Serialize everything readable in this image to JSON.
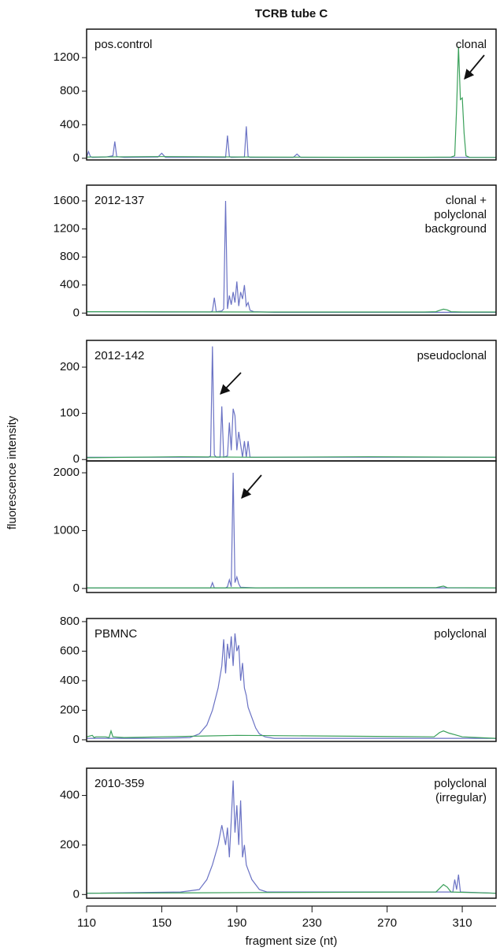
{
  "chart_data": {
    "type": "line",
    "title": "TCRB tube C",
    "xlabel": "fragment size (nt)",
    "ylabel": "fluorescence intensity",
    "xlim": [
      110,
      328
    ],
    "xticks": [
      110,
      150,
      190,
      230,
      270,
      310
    ],
    "panels": [
      {
        "type": "line",
        "label": "pos.control",
        "annotation": [
          "clonal"
        ],
        "ylim": [
          -20,
          1540
        ],
        "yticks": [
          0,
          400,
          800,
          1200
        ],
        "series": [
          {
            "color": "#6a72c4",
            "x": [
              110,
              111,
              112,
              113,
              120,
              124,
              125,
              126,
              130,
              148,
              150,
              152,
              170,
              184,
              185,
              186,
              187,
              194,
              195,
              196,
              197,
              220,
              222,
              224,
              250,
              300,
              328
            ],
            "values": [
              10,
              80,
              20,
              10,
              15,
              30,
              200,
              20,
              10,
              15,
              60,
              10,
              12,
              10,
              270,
              20,
              10,
              15,
              380,
              20,
              10,
              10,
              50,
              10,
              12,
              10,
              10
            ]
          },
          {
            "color": "#3aa05a",
            "x": [
              110,
              150,
              200,
              250,
              290,
              304,
              306,
              307,
              308,
              309,
              310,
              311,
              312,
              314,
              328
            ],
            "values": [
              15,
              20,
              15,
              12,
              12,
              15,
              30,
              600,
              1330,
              700,
              720,
              300,
              30,
              10,
              10
            ]
          }
        ]
      },
      {
        "type": "line",
        "label": "2012-137",
        "annotation": [
          "clonal +",
          "polyclonal",
          "background"
        ],
        "ylim": [
          -30,
          1825
        ],
        "yticks": [
          0,
          400,
          800,
          1200,
          1600
        ],
        "series": [
          {
            "color": "#6a72c4",
            "x": [
              110,
              150,
              170,
              176,
              177,
              178,
              179,
              182,
              183,
              184,
              185,
              186,
              187,
              188,
              189,
              190,
              191,
              192,
              193,
              194,
              195,
              196,
              197,
              199,
              210,
              300,
              328
            ],
            "values": [
              20,
              15,
              15,
              15,
              30,
              220,
              20,
              30,
              60,
              1600,
              60,
              250,
              120,
              300,
              150,
              450,
              100,
              300,
              200,
              400,
              100,
              150,
              40,
              20,
              10,
              10,
              10
            ]
          },
          {
            "color": "#3aa05a",
            "x": [
              110,
              200,
              290,
              296,
              298,
              300,
              302,
              304,
              310,
              328
            ],
            "values": [
              20,
              15,
              15,
              20,
              40,
              55,
              45,
              20,
              15,
              15
            ]
          }
        ]
      },
      {
        "type": "line",
        "label": "2012-142",
        "annotation": [
          "pseudoclonal"
        ],
        "ylim": [
          -3,
          258
        ],
        "yticks": [
          0,
          100,
          200
        ],
        "series": [
          {
            "color": "#6a72c4",
            "x": [
              110,
              150,
              175,
              176,
              177,
              178,
              179,
              181,
              182,
              183,
              185,
              186,
              187,
              188,
              189,
              190,
              191,
              193,
              194,
              195,
              196,
              197,
              200,
              250,
              328
            ],
            "values": [
              5,
              5,
              5,
              8,
              245,
              10,
              5,
              5,
              115,
              5,
              8,
              80,
              20,
              110,
              95,
              20,
              60,
              5,
              40,
              5,
              40,
              5,
              5,
              5,
              5
            ]
          },
          {
            "color": "#3aa05a",
            "x": [
              110,
              160,
              200,
              260,
              328
            ],
            "values": [
              4,
              6,
              5,
              6,
              5
            ]
          }
        ]
      },
      {
        "type": "line",
        "ylim": [
          -70,
          2205
        ],
        "yticks": [
          0,
          1000,
          2000
        ],
        "series": [
          {
            "color": "#6a72c4",
            "x": [
              110,
              170,
              176,
              177,
              178,
              184,
              185,
              186,
              187,
              188,
              189,
              190,
              191,
              192,
              200,
              328
            ],
            "values": [
              10,
              10,
              10,
              100,
              10,
              10,
              30,
              150,
              30,
              2000,
              100,
              200,
              80,
              20,
              10,
              10
            ]
          },
          {
            "color": "#3aa05a",
            "x": [
              110,
              200,
              296,
              300,
              302,
              328
            ],
            "values": [
              10,
              10,
              15,
              40,
              15,
              10
            ]
          }
        ]
      },
      {
        "type": "line",
        "label": "PBMNC",
        "annotation": [
          "polyclonal"
        ],
        "ylim": [
          -11,
          821
        ],
        "yticks": [
          0,
          200,
          400,
          600,
          800
        ],
        "series": [
          {
            "color": "#6a72c4",
            "x": [
              110,
              150,
              165,
              170,
              174,
              177,
              180,
              182,
              183,
              184,
              185,
              186,
              187,
              188,
              189,
              190,
              191,
              192,
              193,
              194,
              195,
              196,
              198,
              200,
              202,
              205,
              210,
              328
            ],
            "values": [
              10,
              10,
              15,
              40,
              100,
              200,
              350,
              500,
              680,
              450,
              650,
              550,
              700,
              500,
              720,
              600,
              640,
              400,
              520,
              350,
              300,
              220,
              150,
              80,
              40,
              20,
              10,
              10
            ]
          },
          {
            "color": "#3aa05a",
            "x": [
              110,
              113,
              114,
              115,
              120,
              122,
              123,
              124,
              130,
              190,
              295,
              298,
              300,
              303,
              306,
              310,
              328
            ],
            "values": [
              20,
              30,
              15,
              20,
              20,
              15,
              60,
              20,
              15,
              30,
              20,
              50,
              60,
              45,
              35,
              20,
              10
            ]
          }
        ]
      },
      {
        "type": "line",
        "label": "2010-359",
        "annotation": [
          "polyclonal",
          "(irregular)"
        ],
        "ylim": [
          -15,
          510
        ],
        "yticks": [
          0,
          200,
          400
        ],
        "series": [
          {
            "color": "#6a72c4",
            "x": [
              110,
              160,
              170,
              174,
              177,
              180,
              182,
              184,
              185,
              186,
              187,
              188,
              189,
              190,
              191,
              192,
              193,
              194,
              195,
              196,
              198,
              200,
              202,
              206,
              300,
              305,
              306,
              307,
              308,
              309,
              328
            ],
            "values": [
              5,
              10,
              20,
              60,
              120,
              200,
              280,
              200,
              270,
              150,
              300,
              460,
              250,
              360,
              200,
              380,
              150,
              200,
              120,
              100,
              60,
              40,
              20,
              10,
              10,
              10,
              60,
              20,
              80,
              10,
              5
            ]
          },
          {
            "color": "#3aa05a",
            "x": [
              110,
              200,
              296,
              298,
              300,
              302,
              304,
              328
            ],
            "values": [
              5,
              8,
              10,
              25,
              40,
              30,
              10,
              5
            ]
          }
        ]
      }
    ]
  }
}
